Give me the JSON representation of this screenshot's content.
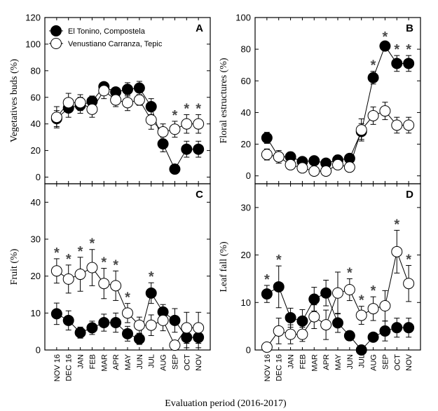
{
  "chart_data": [
    {
      "type": "line",
      "panel_label": "A",
      "ylabel": "Vegetatives buds (%)",
      "ylim": [
        -5,
        120
      ],
      "yticks": [
        0,
        20,
        40,
        60,
        80,
        100,
        120
      ],
      "categories": [
        "NOV 16",
        "DEC 16",
        "JAN",
        "FEB",
        "MAR",
        "APR",
        "MAY",
        "JUN",
        "JUL",
        "AUG",
        "SEP",
        "OCT",
        "NOV"
      ],
      "series": [
        {
          "name": "El Tonino, Compostela",
          "marker": "filled-circle",
          "values": [
            44,
            52,
            54,
            57,
            68,
            64,
            66,
            67,
            53,
            25,
            6,
            21,
            21
          ],
          "err": [
            6,
            7,
            6,
            4,
            2,
            3,
            5,
            5,
            6,
            6,
            2,
            6,
            6
          ]
        },
        {
          "name": "Venustiano Carranza, Tepic",
          "marker": "open-circle",
          "values": [
            45,
            56,
            56,
            51,
            65,
            58,
            56,
            58,
            43,
            34,
            36,
            40,
            40
          ],
          "err": [
            8,
            7,
            6,
            6,
            6,
            5,
            6,
            4,
            7,
            6,
            6,
            7,
            7
          ]
        }
      ],
      "significant": [
        10,
        11,
        12
      ],
      "significant_above": "max",
      "legend": "top-left"
    },
    {
      "type": "line",
      "panel_label": "B",
      "ylabel": "Floral estructures (%)",
      "ylim": [
        -5,
        100
      ],
      "yticks": [
        0,
        20,
        40,
        60,
        80,
        100
      ],
      "categories": [
        "NOV 16",
        "DEC 16",
        "JAN",
        "FEB",
        "MAR",
        "APR",
        "MAY",
        "JUN",
        "JUL",
        "AUG",
        "SEP",
        "OCT",
        "NOV"
      ],
      "series": [
        {
          "name": "El Tonino, Compostela",
          "marker": "filled-circle",
          "values": [
            24,
            12,
            12,
            9,
            9.5,
            8,
            10,
            11,
            28,
            62,
            82,
            71,
            71
          ],
          "err": [
            3.5,
            3,
            3,
            2,
            2,
            2,
            3,
            2,
            5,
            4,
            2,
            5,
            5
          ]
        },
        {
          "name": "Venustiano Carranza, Tepic",
          "marker": "open-circle",
          "values": [
            13.5,
            12,
            7,
            5,
            3,
            3,
            7,
            5.5,
            29,
            38,
            41,
            32,
            32
          ],
          "err": [
            3.5,
            4,
            2,
            2,
            1,
            1,
            2,
            2,
            7,
            5.5,
            5.5,
            5,
            5
          ]
        }
      ],
      "significant": [
        9,
        10,
        11,
        12
      ],
      "significant_above": "max"
    },
    {
      "type": "line",
      "panel_label": "C",
      "ylabel": "Fruit (%)",
      "ylim": [
        0,
        45
      ],
      "yticks": [
        0,
        10,
        20,
        30,
        40
      ],
      "categories": [
        "NOV 16",
        "DEC 16",
        "JAN",
        "FEB",
        "MAR",
        "APR",
        "MAY",
        "JUN",
        "JUL",
        "AUG",
        "SEP",
        "OCT",
        "NOV"
      ],
      "series": [
        {
          "name": "El Tonino, Compostela",
          "marker": "filled-circle",
          "values": [
            9.8,
            8,
            4.7,
            6,
            7.4,
            7.4,
            4.4,
            3,
            15.4,
            10.3,
            8,
            3.4,
            3.4
          ],
          "err": [
            2.9,
            2.6,
            1.5,
            1.8,
            2.3,
            2.6,
            2,
            1.5,
            2.8,
            2,
            3.2,
            2.8,
            2.8
          ]
        },
        {
          "name": "Venustiano Carranza, Tepic",
          "marker": "open-circle",
          "values": [
            21.4,
            19.2,
            20.5,
            22.3,
            18,
            17.4,
            10,
            6.7,
            6.7,
            8,
            1.3,
            6,
            6
          ],
          "err": [
            3.3,
            3.8,
            4.6,
            4.9,
            4.1,
            4,
            2.6,
            2.2,
            2.8,
            2.8,
            1,
            4.2,
            4.2
          ]
        }
      ],
      "significant": [
        0,
        1,
        2,
        3,
        4,
        5,
        6,
        8
      ],
      "significant_above": "max"
    },
    {
      "type": "line",
      "panel_label": "D",
      "ylabel": "Leaf fall (%)",
      "ylim": [
        0,
        35
      ],
      "yticks": [
        0,
        10,
        20,
        30
      ],
      "categories": [
        "NOV 16",
        "DEC 16",
        "JAN",
        "FEB",
        "MAR",
        "APR",
        "MAY",
        "JUN",
        "JUL",
        "AUG",
        "SEP",
        "OCT",
        "NOV"
      ],
      "series": [
        {
          "name": "El Tonino, Compostela",
          "marker": "filled-circle",
          "values": [
            11.8,
            13.3,
            6.8,
            6.1,
            10.7,
            12,
            5.7,
            3,
            0,
            2.7,
            4,
            4.7,
            4.7
          ],
          "err": [
            1.8,
            4.4,
            2,
            2.4,
            2.5,
            2.7,
            2,
            1,
            0.3,
            0.8,
            2.1,
            2,
            2
          ]
        },
        {
          "name": "Venustiano Carranza, Tepic",
          "marker": "open-circle",
          "values": [
            0.6,
            4,
            3.3,
            3.3,
            7,
            5.3,
            12,
            12.7,
            7.3,
            8.7,
            9.3,
            20.7,
            14
          ],
          "err": [
            0.3,
            2.7,
            2,
            1.5,
            2.5,
            3.1,
            4.4,
            2.3,
            1.9,
            2.5,
            3.2,
            4.5,
            3.8
          ]
        }
      ],
      "significant": [
        0,
        1,
        7,
        8,
        9,
        11,
        12
      ],
      "significant_above": "max"
    }
  ],
  "xlabel": "Evaluation period (2016-2017)",
  "star_symbol": "*",
  "colors": {
    "filled": "#000000",
    "open": "#ffffff",
    "star": "#4a4a4a"
  }
}
